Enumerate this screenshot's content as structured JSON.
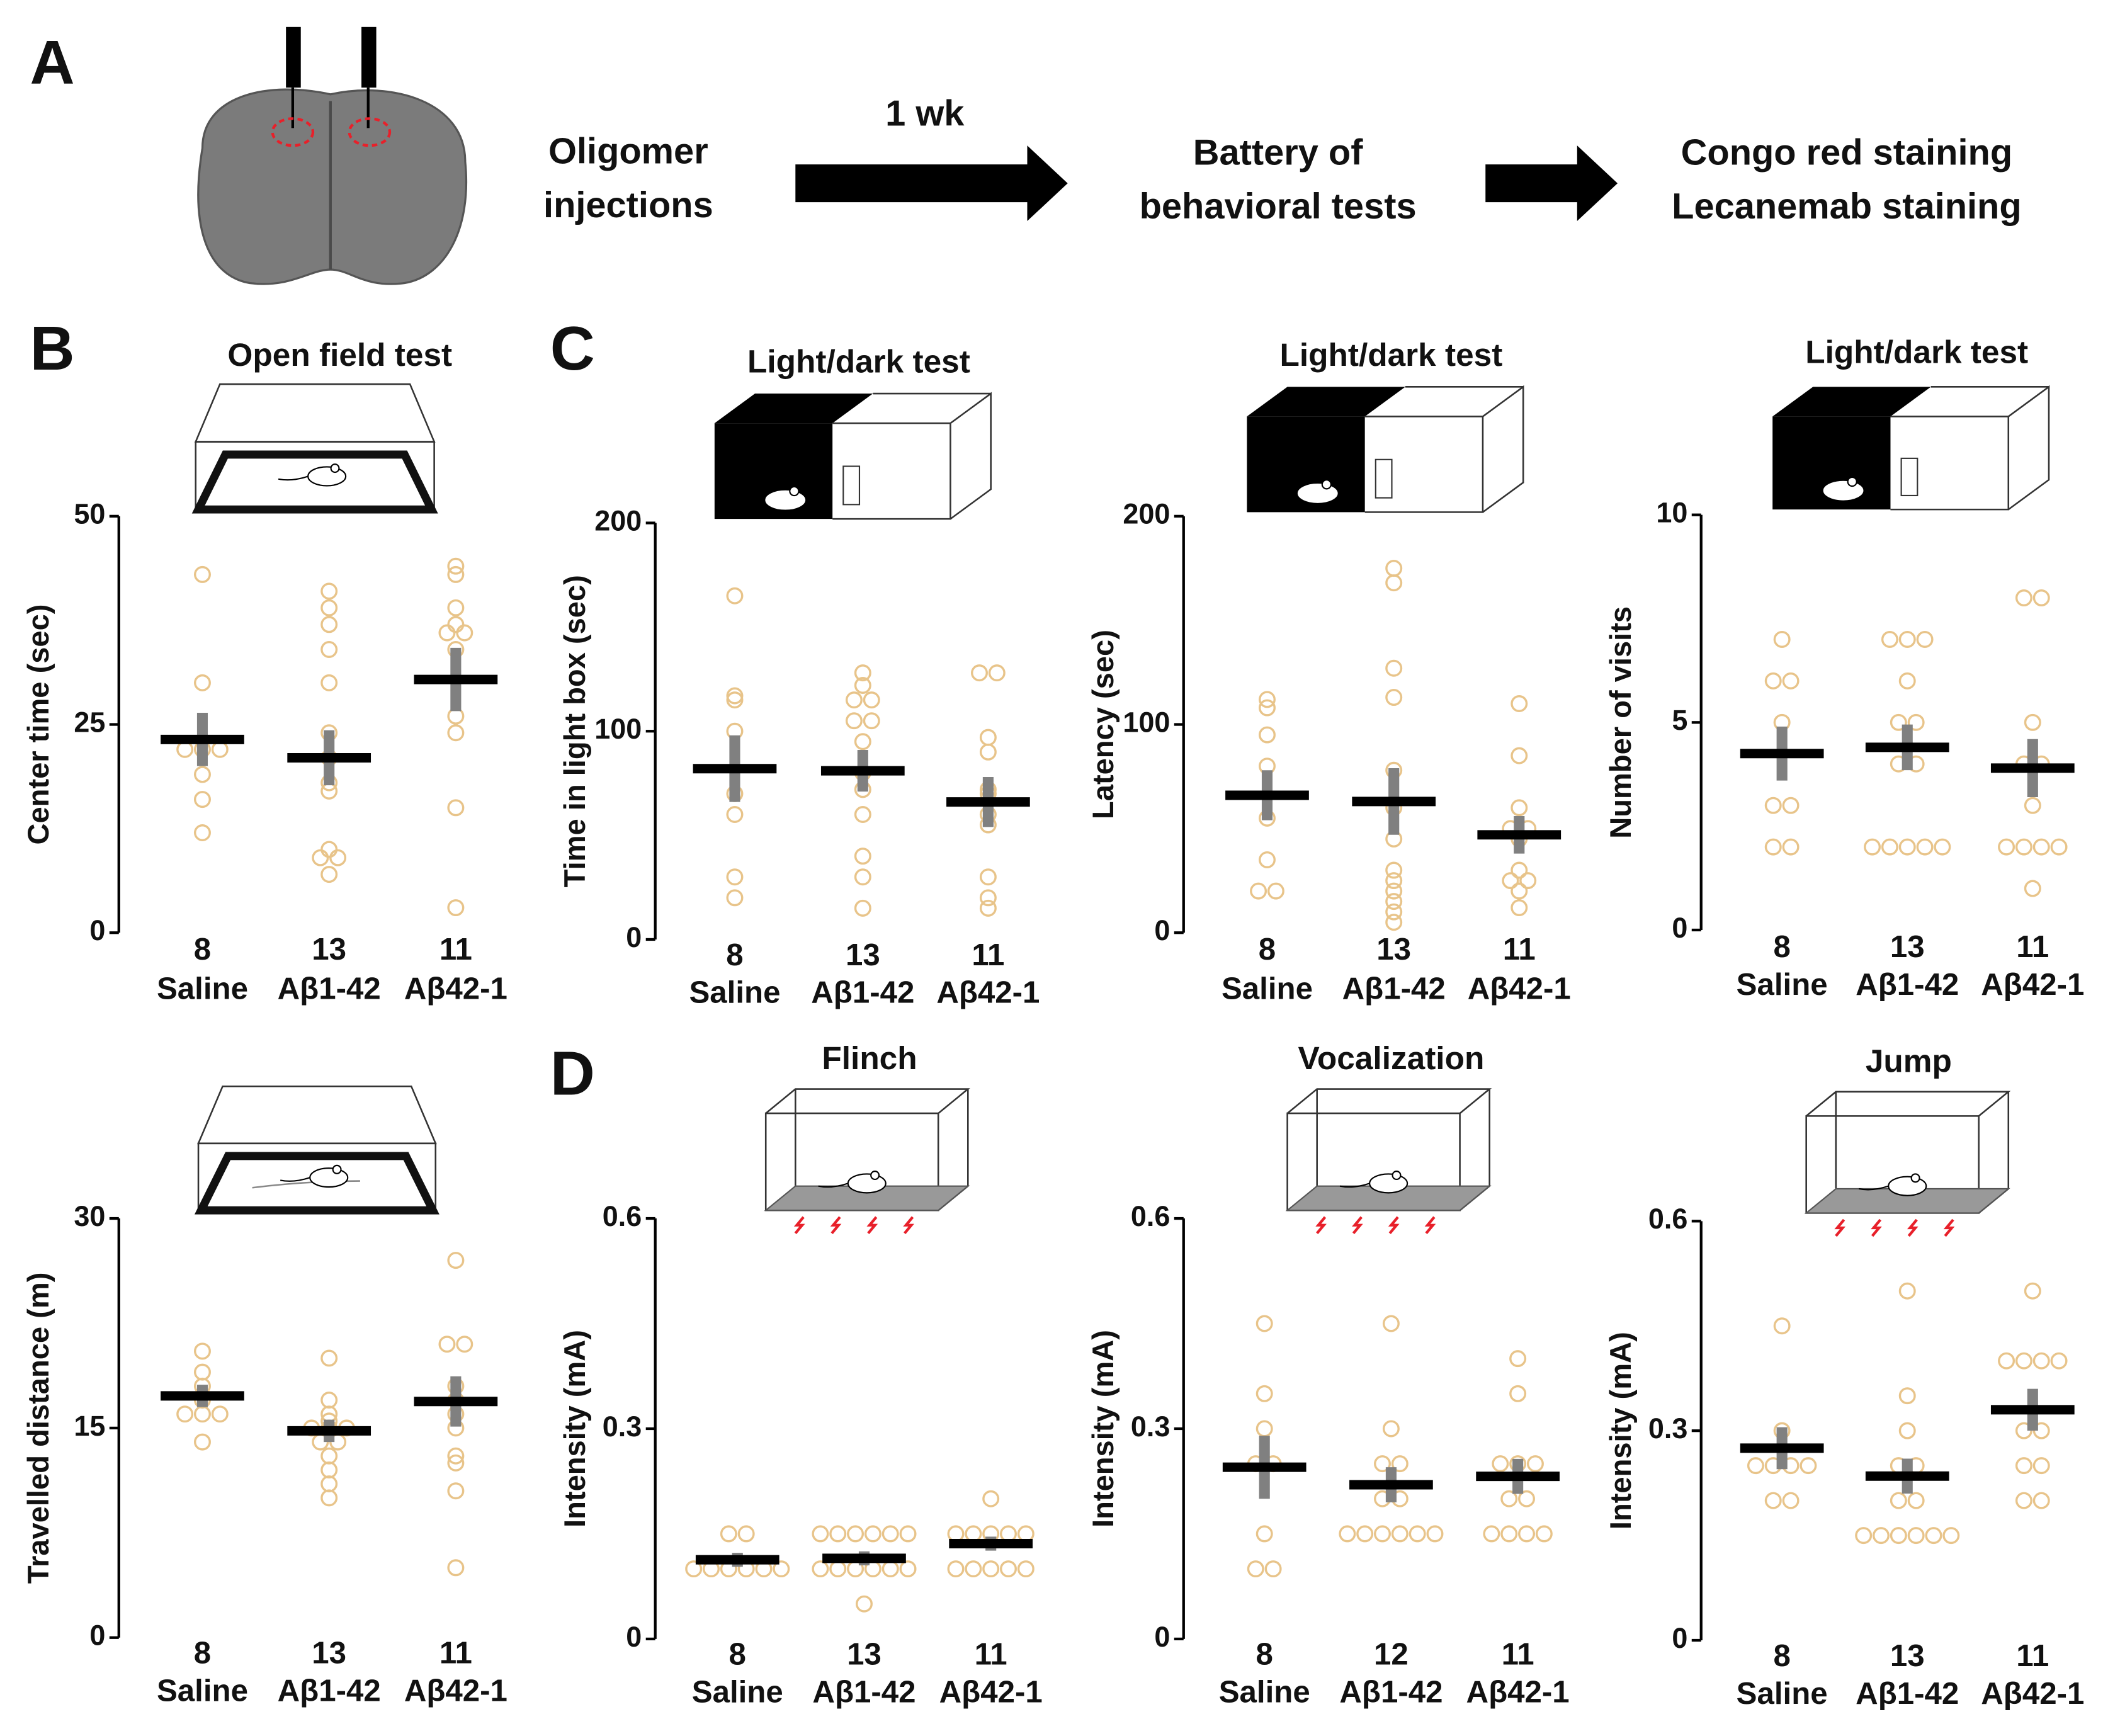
{
  "panel_labels": [
    "A",
    "B",
    "C",
    "D"
  ],
  "steps": [
    [
      "Oligomer",
      "injections"
    ],
    [
      "Battery of",
      "behavioral tests"
    ]
  ],
  "arrow_label": "1 wk",
  "outcomes": [
    {
      "text": "Congo red staining",
      "color": "#e8202a"
    },
    {
      "text": "Lecanemab staining",
      "color": "#1aa84a"
    }
  ],
  "chart_data": [
    {
      "type": "dot",
      "title": "Open field test",
      "ylabel": "Center time (sec)",
      "ylim": [
        0,
        50
      ],
      "yticks": [
        0,
        25,
        50
      ],
      "categories": [
        "Saline",
        "Aβ1-42",
        "Aβ42-1"
      ],
      "n": [
        8,
        13,
        11
      ],
      "points": [
        [
          43,
          30,
          22,
          22,
          22,
          19,
          16,
          12
        ],
        [
          41,
          39,
          37,
          34,
          30,
          24,
          21,
          18,
          17,
          10,
          9,
          9,
          7
        ],
        [
          44,
          43,
          39,
          37,
          36,
          36,
          34,
          26,
          24,
          15,
          3
        ]
      ],
      "means": [
        23.2,
        21,
        30.4
      ],
      "sem": [
        3.2,
        3.3,
        3.8
      ],
      "point_color": "#e8c48a",
      "mean_color": "#000000",
      "error_color": "#808080"
    },
    {
      "type": "dot",
      "title": "Light/dark test",
      "ylabel": "Time in light box (sec)",
      "ylim": [
        0,
        200
      ],
      "yticks": [
        0,
        100,
        200
      ],
      "categories": [
        "Saline",
        "Aβ1-42",
        "Aβ42-1"
      ],
      "n": [
        8,
        13,
        11
      ],
      "points": [
        [
          165,
          117,
          115,
          100,
          70,
          60,
          30,
          20
        ],
        [
          128,
          122,
          115,
          115,
          105,
          105,
          95,
          80,
          72,
          60,
          40,
          30,
          15
        ],
        [
          128,
          128,
          97,
          90,
          72,
          70,
          60,
          55,
          30,
          20,
          15
        ]
      ],
      "means": [
        82,
        81,
        66
      ],
      "sem": [
        16,
        10,
        12
      ],
      "point_color": "#e8c48a",
      "mean_color": "#000000",
      "error_color": "#808080"
    },
    {
      "type": "dot",
      "title": "Light/dark test",
      "ylabel": "Latency (sec)",
      "ylim": [
        0,
        200
      ],
      "yticks": [
        0,
        100,
        200
      ],
      "categories": [
        "Saline",
        "Aβ1-42",
        "Aβ42-1"
      ],
      "n": [
        8,
        13,
        11
      ],
      "points": [
        [
          112,
          108,
          95,
          80,
          55,
          35,
          20,
          20
        ],
        [
          175,
          168,
          127,
          113,
          78,
          60,
          45,
          30,
          25,
          20,
          15,
          10,
          5
        ],
        [
          110,
          85,
          60,
          50,
          50,
          45,
          30,
          25,
          25,
          20,
          12
        ]
      ],
      "means": [
        66,
        63,
        47
      ],
      "sem": [
        12,
        16,
        9
      ],
      "point_color": "#e8c48a",
      "mean_color": "#000000",
      "error_color": "#808080"
    },
    {
      "type": "dot",
      "title": "Light/dark test",
      "ylabel": "Number of visits",
      "ylim": [
        0,
        10
      ],
      "yticks": [
        0,
        5,
        10
      ],
      "categories": [
        "Saline",
        "Aβ1-42",
        "Aβ42-1"
      ],
      "n": [
        8,
        13,
        11
      ],
      "points": [
        [
          7,
          6,
          6,
          5,
          3,
          3,
          2,
          2
        ],
        [
          7,
          7,
          7,
          6,
          5,
          5,
          4,
          4,
          2,
          2,
          2,
          2,
          2
        ],
        [
          8,
          8,
          5,
          4,
          4,
          3,
          2,
          2,
          2,
          2,
          1
        ]
      ],
      "means": [
        4.25,
        4.4,
        3.9
      ],
      "sem": [
        0.65,
        0.55,
        0.7
      ],
      "point_color": "#e8c48a",
      "mean_color": "#000000",
      "error_color": "#808080"
    },
    {
      "type": "dot",
      "ylabel": "Travelled distance (m)",
      "ylim": [
        0,
        30
      ],
      "yticks": [
        0,
        15,
        30
      ],
      "categories": [
        "Saline",
        "Aβ1-42",
        "Aβ42-1"
      ],
      "n": [
        8,
        13,
        11
      ],
      "points": [
        [
          20.5,
          19,
          18,
          17,
          16,
          16,
          16,
          14
        ],
        [
          20,
          17,
          16,
          15.5,
          15,
          15,
          15,
          14,
          14,
          13,
          12,
          11,
          10
        ],
        [
          27,
          21,
          21,
          18,
          17,
          16,
          15,
          13,
          12.5,
          10.5,
          5
        ]
      ],
      "means": [
        17.3,
        14.8,
        16.9
      ],
      "sem": [
        0.8,
        0.8,
        1.8
      ],
      "point_color": "#e8c48a",
      "mean_color": "#000000",
      "error_color": "#808080"
    },
    {
      "type": "dot",
      "title": "Flinch",
      "ylabel": "Intensity (mA)",
      "ylim": [
        0,
        0.6
      ],
      "yticks": [
        0,
        0.3,
        0.6
      ],
      "categories": [
        "Saline",
        "Aβ1-42",
        "Aβ42-1"
      ],
      "n": [
        8,
        13,
        11
      ],
      "points": [
        [
          0.15,
          0.15,
          0.1,
          0.1,
          0.1,
          0.1,
          0.1,
          0.1
        ],
        [
          0.15,
          0.15,
          0.15,
          0.15,
          0.15,
          0.15,
          0.1,
          0.1,
          0.1,
          0.1,
          0.1,
          0.1,
          0.05
        ],
        [
          0.2,
          0.15,
          0.15,
          0.15,
          0.15,
          0.15,
          0.1,
          0.1,
          0.1,
          0.1,
          0.1
        ]
      ],
      "means": [
        0.113,
        0.115,
        0.136
      ],
      "sem": [
        0.01,
        0.01,
        0.01
      ],
      "point_color": "#e8c48a",
      "mean_color": "#000000",
      "error_color": "#808080"
    },
    {
      "type": "dot",
      "title": "Vocalization",
      "ylabel": "Intensity (mA)",
      "ylim": [
        0,
        0.6
      ],
      "yticks": [
        0,
        0.3,
        0.6
      ],
      "categories": [
        "Saline",
        "Aβ1-42",
        "Aβ42-1"
      ],
      "n": [
        8,
        12,
        11
      ],
      "points": [
        [
          0.45,
          0.35,
          0.3,
          0.25,
          0.25,
          0.15,
          0.1,
          0.1
        ],
        [
          0.45,
          0.3,
          0.25,
          0.25,
          0.2,
          0.2,
          0.15,
          0.15,
          0.15,
          0.15,
          0.15,
          0.15
        ],
        [
          0.4,
          0.35,
          0.25,
          0.25,
          0.25,
          0.2,
          0.2,
          0.15,
          0.15,
          0.15,
          0.15
        ]
      ],
      "means": [
        0.245,
        0.22,
        0.232
      ],
      "sem": [
        0.045,
        0.025,
        0.025
      ],
      "point_color": "#e8c48a",
      "mean_color": "#000000",
      "error_color": "#808080"
    },
    {
      "type": "dot",
      "title": "Jump",
      "ylabel": "Intensity (mA)",
      "ylim": [
        0,
        0.6
      ],
      "yticks": [
        0,
        0.3,
        0.6
      ],
      "categories": [
        "Saline",
        "Aβ1-42",
        "Aβ42-1"
      ],
      "n": [
        8,
        13,
        11
      ],
      "points": [
        [
          0.45,
          0.3,
          0.25,
          0.25,
          0.25,
          0.25,
          0.2,
          0.2
        ],
        [
          0.5,
          0.35,
          0.3,
          0.25,
          0.25,
          0.2,
          0.2,
          0.15,
          0.15,
          0.15,
          0.15,
          0.15,
          0.15
        ],
        [
          0.5,
          0.4,
          0.4,
          0.4,
          0.4,
          0.3,
          0.3,
          0.25,
          0.25,
          0.2,
          0.2
        ]
      ],
      "means": [
        0.275,
        0.235,
        0.33
      ],
      "sem": [
        0.03,
        0.025,
        0.03
      ],
      "point_color": "#e8c48a",
      "mean_color": "#000000",
      "error_color": "#808080"
    }
  ]
}
